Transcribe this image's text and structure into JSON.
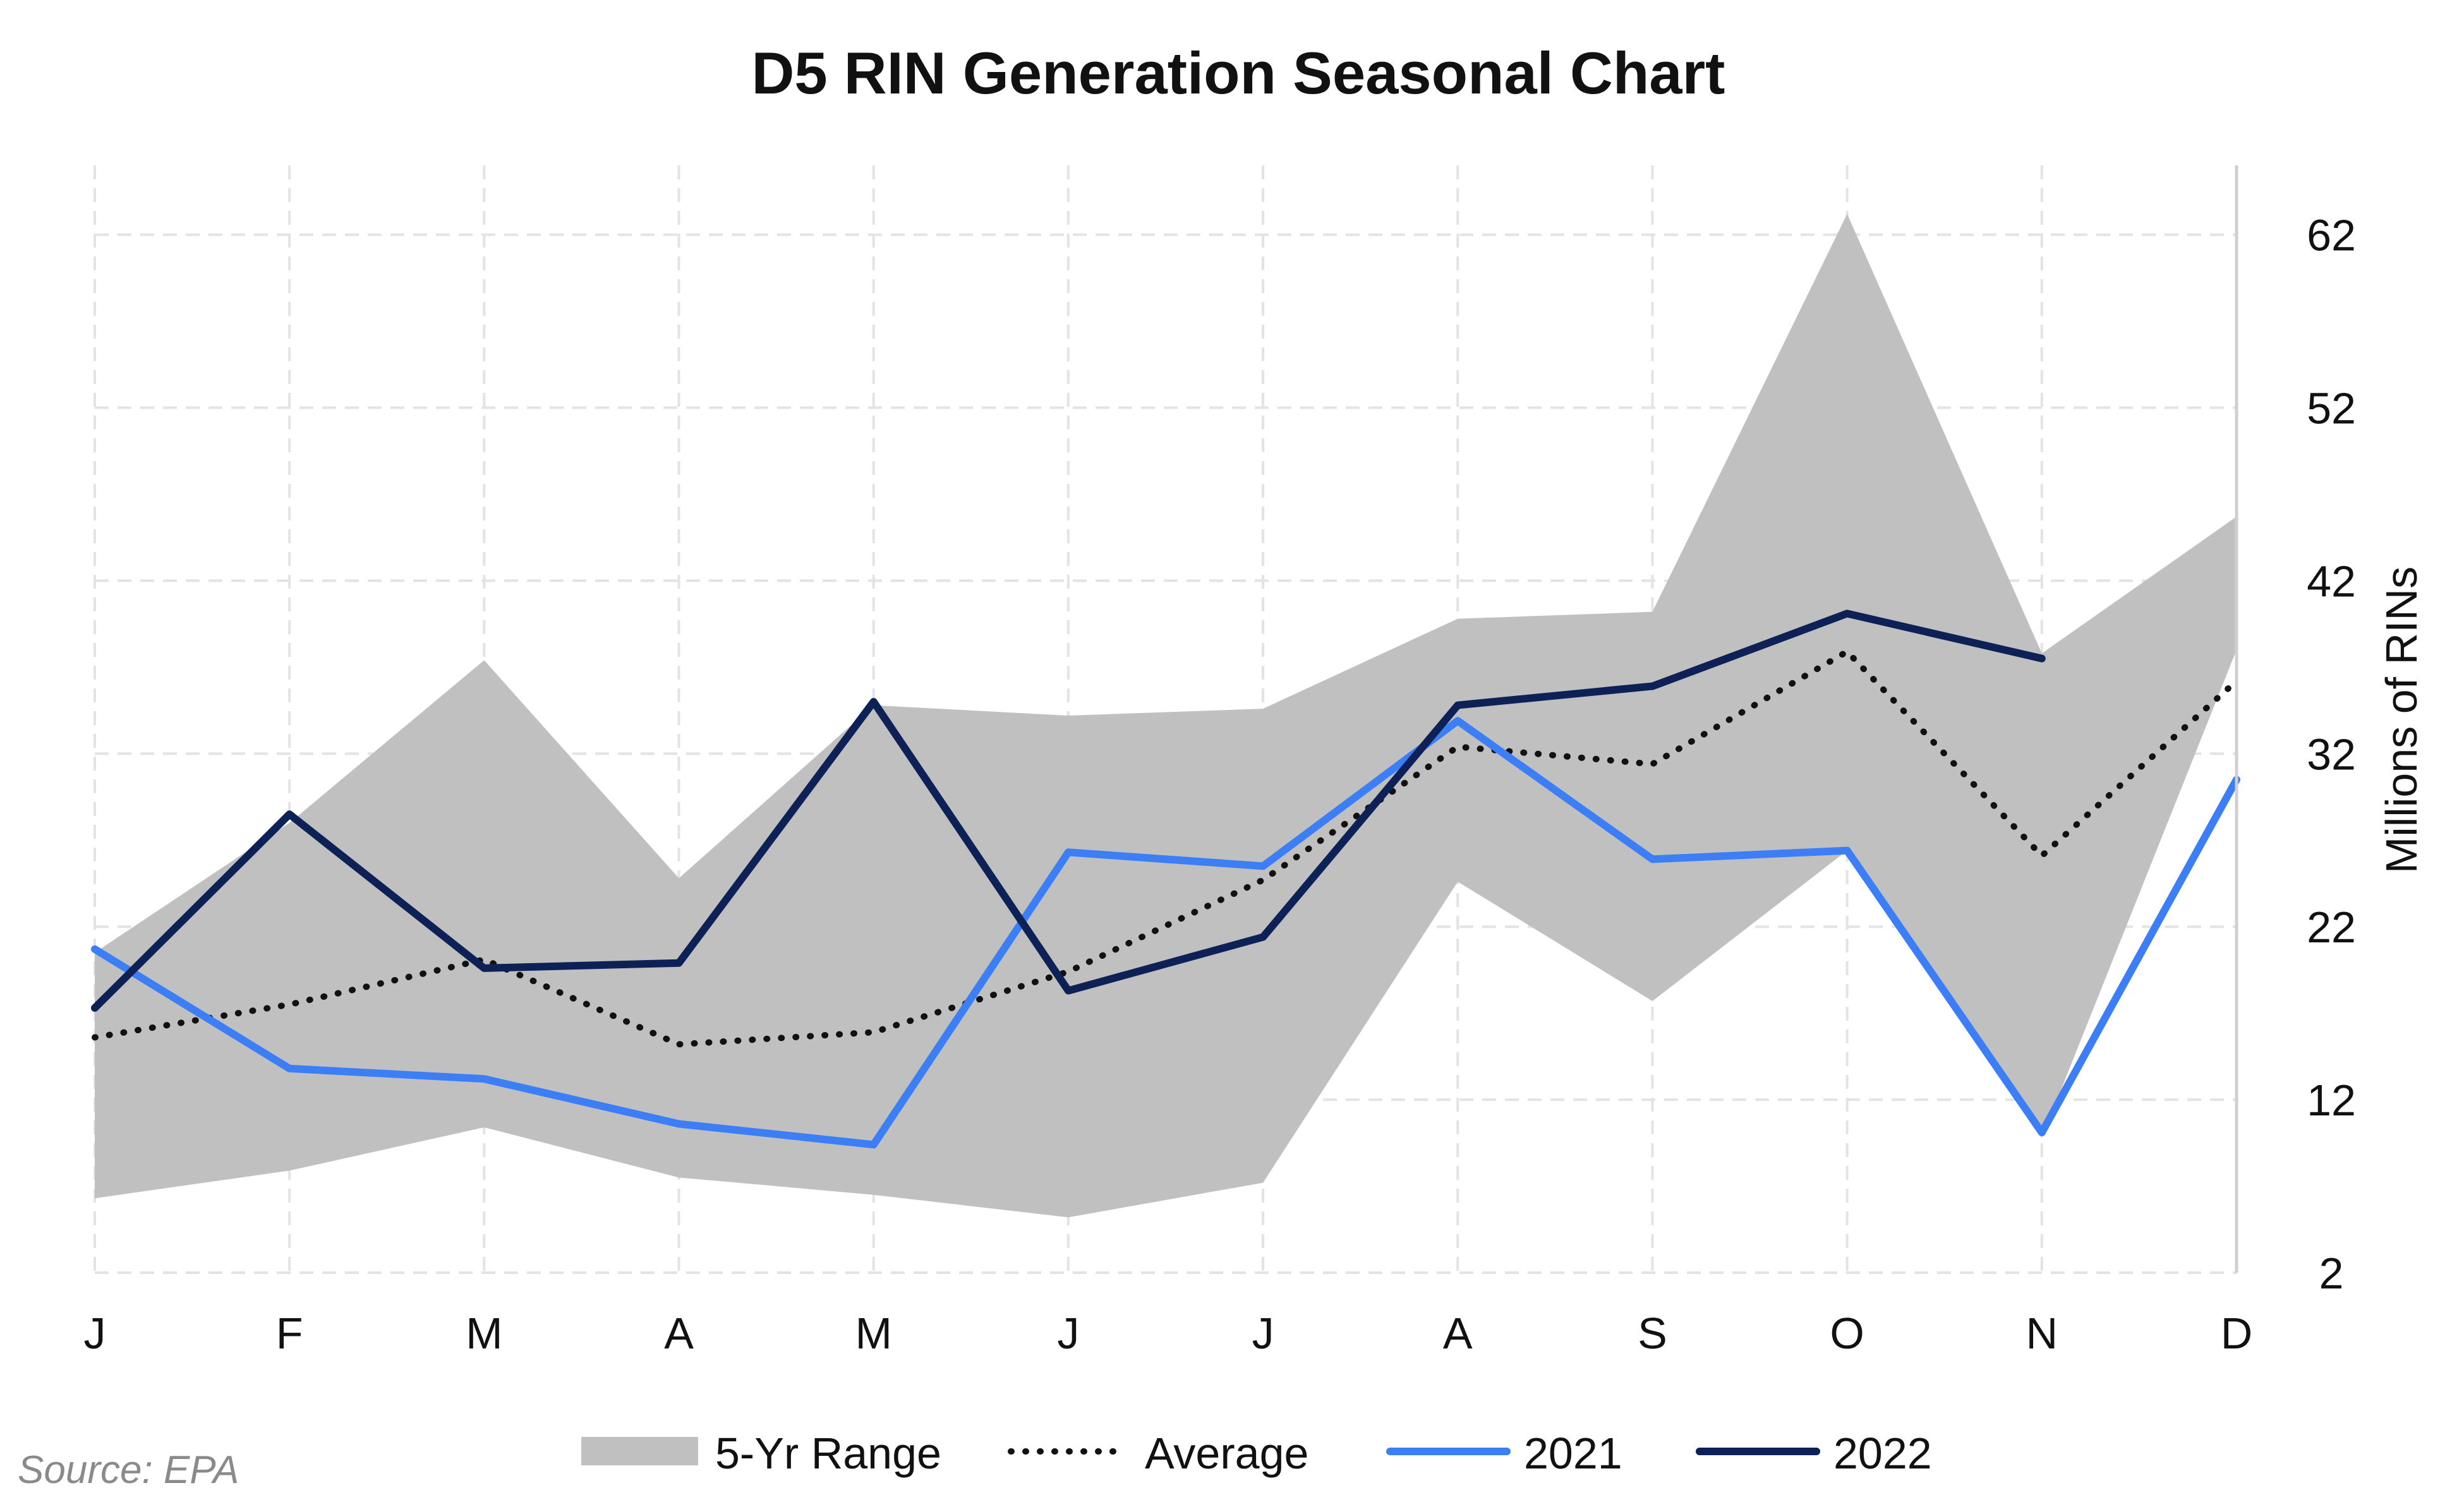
{
  "chart_data": {
    "type": "line",
    "title": "D5 RIN Generation Seasonal Chart",
    "ylabel": "Millions of RINs",
    "xlabel": "",
    "source": "Source: EPA",
    "categories": [
      "J",
      "F",
      "M",
      "A",
      "M",
      "J",
      "J",
      "A",
      "S",
      "O",
      "N",
      "D"
    ],
    "ylim": [
      2,
      66
    ],
    "yticks": [
      2,
      12,
      22,
      32,
      42,
      52,
      62
    ],
    "grid": true,
    "legend_position": "bottom",
    "range": {
      "name": "5-Yr Range",
      "color": "#c0c0c0",
      "high": [
        20.5,
        28,
        37.4,
        24.8,
        34.8,
        34.2,
        34.6,
        39.8,
        40.2,
        63.2,
        37.8,
        45.7
      ],
      "low": [
        6.3,
        7.9,
        10.4,
        7.5,
        6.5,
        5.2,
        7.2,
        24.6,
        17.7,
        26.4,
        9.8,
        38
      ]
    },
    "series": [
      {
        "name": "Average",
        "style": "dotted",
        "color": "#111111",
        "values": [
          15.6,
          17.5,
          20.1,
          15.2,
          15.9,
          19.4,
          24.7,
          32.4,
          31.4,
          37.9,
          26.1,
          36.2
        ]
      },
      {
        "name": "2021",
        "style": "solid",
        "color": "#3b7ef5",
        "values": [
          20.7,
          13.8,
          13.2,
          10.6,
          9.4,
          26.3,
          25.5,
          33.9,
          25.9,
          26.4,
          10.1,
          30.5
        ]
      },
      {
        "name": "2022",
        "style": "solid",
        "color": "#0d2157",
        "values": [
          17.3,
          28.5,
          19.6,
          19.9,
          35,
          18.3,
          21.4,
          34.8,
          35.9,
          40.1,
          37.5,
          null
        ]
      }
    ]
  }
}
